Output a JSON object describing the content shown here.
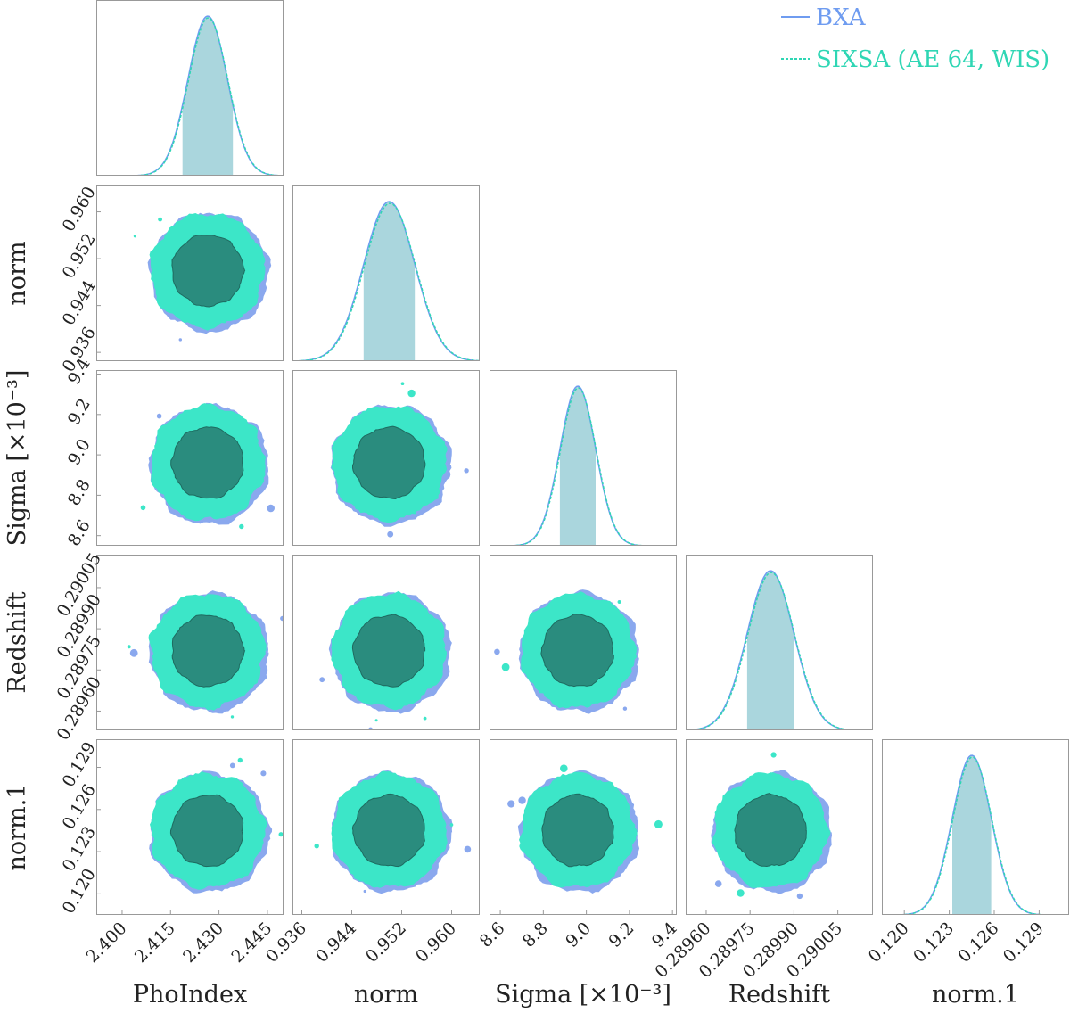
{
  "chart_data": {
    "type": "corner",
    "title": "",
    "params": [
      {
        "name": "PhoIndex",
        "label": "PhoIndex",
        "ticks": [
          "2.400",
          "2.415",
          "2.430",
          "2.445"
        ],
        "tick_values": [
          2.4,
          2.415,
          2.43,
          2.445
        ],
        "range": [
          2.392,
          2.45
        ],
        "mean": 2.4265,
        "sd": 0.0061,
        "ci68": [
          2.4187,
          2.4343
        ]
      },
      {
        "name": "norm",
        "label": "norm",
        "ticks": [
          "0.936",
          "0.944",
          "0.952",
          "0.960"
        ],
        "tick_values": [
          0.936,
          0.944,
          0.952,
          0.96
        ],
        "range": [
          0.9345,
          0.9645
        ],
        "mean": 0.95,
        "sd": 0.0041,
        "ci68": [
          0.9459,
          0.9541
        ]
      },
      {
        "name": "sigma",
        "label": "Sigma [×10⁻³]",
        "ticks": [
          "8.6",
          "8.8",
          "9.0",
          "9.2",
          "9.4"
        ],
        "tick_values": [
          8.6,
          8.8,
          9.0,
          9.2,
          9.4
        ],
        "range": [
          8.55,
          9.42
        ],
        "mean": 8.96,
        "sd": 0.083,
        "ci68": [
          8.877,
          9.043
        ]
      },
      {
        "name": "redshift",
        "label": "Redshift",
        "ticks": [
          "0.28960",
          "0.28975",
          "0.28990",
          "0.29005"
        ],
        "tick_values": [
          0.2896,
          0.28975,
          0.2899,
          0.29005
        ],
        "range": [
          0.28953,
          0.29017
        ],
        "mean": 0.28982,
        "sd": 8e-05,
        "ci68": [
          0.28974,
          0.2899
        ]
      },
      {
        "name": "norm1",
        "label": "norm.1",
        "ticks": [
          "0.120",
          "0.123",
          "0.126",
          "0.129"
        ],
        "tick_values": [
          0.12,
          0.123,
          0.126,
          0.129
        ],
        "range": [
          0.1185,
          0.131
        ],
        "mean": 0.1245,
        "sd": 0.0013,
        "ci68": [
          0.1232,
          0.1258
        ]
      }
    ],
    "series": [
      {
        "name": "BXA",
        "color": "#6f9cf0",
        "line": "solid"
      },
      {
        "name": "SIXSA (AE 64, WIS)",
        "color": "#2fd6b4",
        "line": "dashed"
      }
    ],
    "contour_levels": [
      "68%",
      "95%"
    ],
    "colors": {
      "inner_fill": "#2a8c7e",
      "outer_fill": "#3ce6c8",
      "bxa_fill": "#8aa8ee",
      "ci_band": "#aad6dd",
      "frame": "#999999"
    },
    "legend": {
      "position": "top-right"
    }
  }
}
